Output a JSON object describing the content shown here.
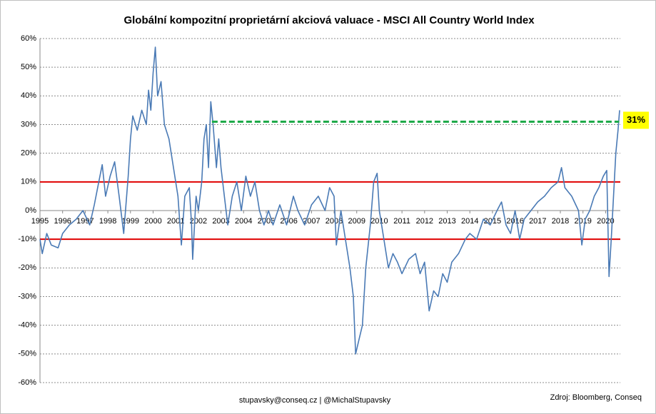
{
  "chart_data": {
    "type": "line",
    "title": "Globální kompozitní proprietární akciová valuace - MSCI All Country World Index",
    "footer_left": "stupavsky@conseq.cz  |  @MichalStupavsky",
    "footer_right": "Zdroj: Bloomberg, Conseq",
    "xlim": [
      1995,
      2020.65
    ],
    "xticks": [
      1995,
      1996,
      1997,
      1998,
      1999,
      2000,
      2001,
      2002,
      2003,
      2004,
      2005,
      2006,
      2007,
      2008,
      2009,
      2010,
      2011,
      2012,
      2013,
      2014,
      2015,
      2016,
      2017,
      2018,
      2019,
      2020
    ],
    "ylim": [
      -60,
      60
    ],
    "yticks": [
      {
        "value": -60,
        "label": "-60%"
      },
      {
        "value": -50,
        "label": "-50%"
      },
      {
        "value": -40,
        "label": "-40%"
      },
      {
        "value": -30,
        "label": "-30%"
      },
      {
        "value": -20,
        "label": "-20%"
      },
      {
        "value": -10,
        "label": "-10%"
      },
      {
        "value": 0,
        "label": "0%"
      },
      {
        "value": 10,
        "label": "10%"
      },
      {
        "value": 20,
        "label": "20%"
      },
      {
        "value": 30,
        "label": "30%"
      },
      {
        "value": 40,
        "label": "40%"
      },
      {
        "value": 50,
        "label": "50%"
      },
      {
        "value": 60,
        "label": "60%"
      }
    ],
    "grid": true,
    "reference_lines": [
      {
        "value": 10,
        "color": "#e00000"
      },
      {
        "value": -10,
        "color": "#e00000"
      }
    ],
    "level_line": {
      "value": 31,
      "label": "31%",
      "color": "#1faa4a",
      "x": [
        2002.6,
        2020.6
      ]
    },
    "series": [
      {
        "name": "MSCI ACWI",
        "color": "#4a7ab5",
        "x": [
          1995.0,
          1995.1,
          1995.3,
          1995.5,
          1995.8,
          1996.0,
          1996.3,
          1996.6,
          1996.9,
          1997.2,
          1997.4,
          1997.6,
          1997.75,
          1997.9,
          1998.1,
          1998.3,
          1998.5,
          1998.7,
          1998.9,
          1999.0,
          1999.1,
          1999.3,
          1999.5,
          1999.7,
          1999.8,
          1999.9,
          2000.0,
          2000.1,
          2000.2,
          2000.35,
          2000.5,
          2000.7,
          2000.9,
          2001.1,
          2001.25,
          2001.4,
          2001.6,
          2001.7,
          2001.75,
          2001.9,
          2002.0,
          2002.15,
          2002.25,
          2002.35,
          2002.45,
          2002.55,
          2002.65,
          2002.8,
          2002.9,
          2003.0,
          2003.15,
          2003.3,
          2003.5,
          2003.7,
          2003.9,
          2004.1,
          2004.3,
          2004.5,
          2004.7,
          2004.9,
          2005.1,
          2005.3,
          2005.6,
          2005.9,
          2006.2,
          2006.4,
          2006.7,
          2007.0,
          2007.3,
          2007.6,
          2007.8,
          2008.0,
          2008.1,
          2008.3,
          2008.5,
          2008.7,
          2008.85,
          2008.95,
          2009.1,
          2009.25,
          2009.4,
          2009.6,
          2009.75,
          2009.9,
          2010.0,
          2010.2,
          2010.4,
          2010.6,
          2010.8,
          2011.0,
          2011.3,
          2011.6,
          2011.8,
          2012.0,
          2012.2,
          2012.4,
          2012.6,
          2012.8,
          2013.0,
          2013.2,
          2013.5,
          2013.8,
          2014.0,
          2014.3,
          2014.6,
          2014.9,
          2015.2,
          2015.4,
          2015.6,
          2015.8,
          2016.0,
          2016.2,
          2016.4,
          2016.7,
          2017.0,
          2017.3,
          2017.6,
          2017.9,
          2018.05,
          2018.2,
          2018.5,
          2018.8,
          2018.95,
          2019.1,
          2019.3,
          2019.5,
          2019.7,
          2019.9,
          2020.05,
          2020.15,
          2020.25,
          2020.35,
          2020.45,
          2020.55,
          2020.62
        ],
        "values": [
          -10,
          -15,
          -8,
          -12,
          -13,
          -8,
          -5,
          -3,
          0,
          -5,
          2,
          10,
          16,
          5,
          12,
          17,
          5,
          -8,
          12,
          25,
          33,
          28,
          35,
          30,
          42,
          35,
          48,
          57,
          40,
          45,
          30,
          25,
          15,
          5,
          -12,
          5,
          8,
          -5,
          -17,
          5,
          0,
          10,
          25,
          30,
          15,
          38,
          30,
          15,
          25,
          15,
          5,
          -5,
          5,
          10,
          0,
          12,
          5,
          10,
          0,
          -5,
          0,
          -5,
          2,
          -5,
          5,
          0,
          -5,
          2,
          5,
          0,
          8,
          5,
          -12,
          0,
          -10,
          -20,
          -30,
          -50,
          -45,
          -40,
          -20,
          -5,
          10,
          13,
          0,
          -10,
          -20,
          -15,
          -18,
          -22,
          -17,
          -15,
          -22,
          -18,
          -35,
          -28,
          -30,
          -22,
          -25,
          -18,
          -15,
          -10,
          -8,
          -10,
          -3,
          -5,
          0,
          3,
          -5,
          -8,
          0,
          -10,
          -3,
          0,
          3,
          5,
          8,
          10,
          15,
          8,
          5,
          0,
          -12,
          -3,
          0,
          5,
          8,
          12,
          14,
          -23,
          -10,
          5,
          20,
          28,
          35
        ]
      }
    ]
  }
}
